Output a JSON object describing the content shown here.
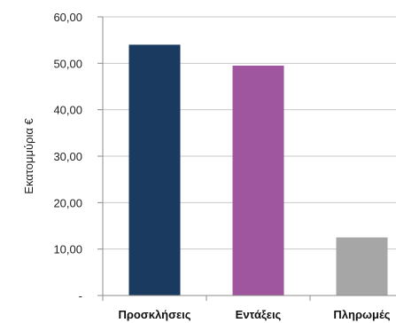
{
  "chart_data": {
    "type": "bar",
    "categories": [
      "Προσκλήσεις",
      "Εντάξεις",
      "Πληρωμές"
    ],
    "values": [
      54.0,
      49.5,
      12.5
    ],
    "colors": [
      "#1b3a5f",
      "#a0569f",
      "#a6a6a6"
    ],
    "title": "",
    "xlabel": "",
    "ylabel": "Εκατομμύρια €",
    "ylim": [
      0,
      60
    ],
    "y_ticks": [
      {
        "value": 0,
        "label": "-"
      },
      {
        "value": 10,
        "label": "10,00"
      },
      {
        "value": 20,
        "label": "20,00"
      },
      {
        "value": 30,
        "label": "30,00"
      },
      {
        "value": 40,
        "label": "40,00"
      },
      {
        "value": 50,
        "label": "50,00"
      },
      {
        "value": 60,
        "label": "60,00"
      }
    ],
    "grid": true,
    "legend": "none"
  }
}
